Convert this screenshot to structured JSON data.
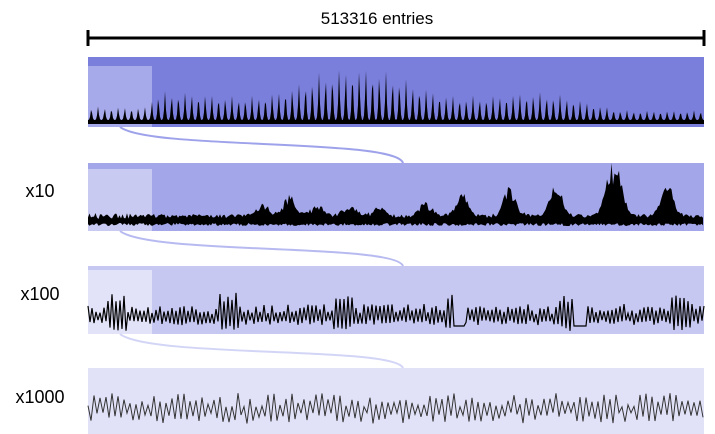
{
  "header": {
    "entries_label": "513316 entries"
  },
  "panels": [
    {
      "zoom_label": "",
      "bg": "#7b7fdc",
      "highlight": "#a6a9ea"
    },
    {
      "zoom_label": "x10",
      "bg": "#a3a6e8",
      "highlight": "#c8caf1"
    },
    {
      "zoom_label": "x100",
      "bg": "#c6c8f1",
      "highlight": "#e2e3f8"
    },
    {
      "zoom_label": "x1000",
      "bg": "#e1e2f8",
      "highlight": ""
    }
  ],
  "colors": {
    "waveform": "#000000",
    "connector": "#9ea2ea",
    "ruler": "#000000"
  }
}
